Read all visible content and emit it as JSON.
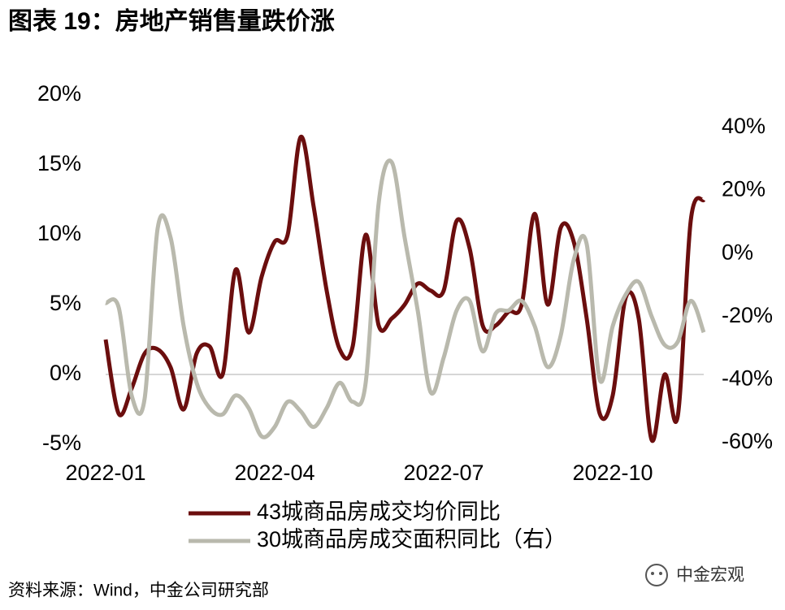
{
  "title": "图表 19：房地产销售量跌价涨",
  "chart_data": {
    "type": "line",
    "categories": [
      "2022-01",
      null,
      null,
      null,
      null,
      null,
      null,
      null,
      null,
      null,
      null,
      null,
      null,
      "2022-04",
      null,
      null,
      null,
      null,
      null,
      null,
      null,
      null,
      null,
      null,
      null,
      null,
      "2022-07",
      null,
      null,
      null,
      null,
      null,
      null,
      null,
      null,
      null,
      null,
      null,
      null,
      "2022-10",
      null,
      null,
      null,
      null,
      null,
      null,
      null
    ],
    "series": [
      {
        "name": "43城商品房成交均价同比",
        "color": "#6b0e0e",
        "values": [
          2.5,
          -2.8,
          -1,
          1.5,
          1.8,
          0.5,
          -2.5,
          1.5,
          2,
          0,
          7.5,
          3,
          7,
          9.5,
          10,
          17,
          12,
          6,
          1.8,
          2,
          10,
          3.5,
          4,
          5,
          6.5,
          6,
          6,
          11,
          9,
          3.5,
          3.5,
          4.5,
          5,
          11.5,
          5,
          10.5,
          9.5,
          4,
          -2.8,
          -1.5,
          5.5,
          4,
          -4.7,
          0,
          -3,
          11,
          12.5
        ]
      },
      {
        "name": "30城商品房成交面积同比（右）",
        "color": "#b9b9ad",
        "axis": "y2",
        "values": [
          -15.7,
          -17,
          -45,
          -46,
          8,
          5,
          -23,
          -41,
          -49,
          -51,
          -45,
          -49,
          -58,
          -55,
          -47,
          -50,
          -55,
          -49,
          -41,
          -47,
          -41,
          16,
          29,
          5,
          -18,
          -44,
          -33,
          -18,
          -15,
          -31,
          -19,
          -18,
          -15,
          -23,
          -36,
          -26,
          -2,
          3,
          -40,
          -23,
          -13,
          -9,
          -20,
          -29,
          -28,
          -15,
          -25
        ]
      }
    ],
    "ylim": [
      -5,
      20
    ],
    "yticks": [
      {
        "value": -5,
        "label": "-5%"
      },
      {
        "value": 0,
        "label": "0%"
      },
      {
        "value": 5,
        "label": "5%"
      },
      {
        "value": 10,
        "label": "10%"
      },
      {
        "value": 15,
        "label": "15%"
      },
      {
        "value": 20,
        "label": "20%"
      }
    ],
    "y2lim": [
      -60.5,
      50.3
    ],
    "y2ticks": [
      {
        "value": -60,
        "label": "-60%"
      },
      {
        "value": -40,
        "label": "-40%"
      },
      {
        "value": -20,
        "label": "-20%"
      },
      {
        "value": 0,
        "label": "0%"
      },
      {
        "value": 20,
        "label": "20%"
      },
      {
        "value": 40,
        "label": "40%"
      }
    ]
  },
  "source": "资料来源：Wind，中金公司研究部",
  "watermark": "中金宏观"
}
